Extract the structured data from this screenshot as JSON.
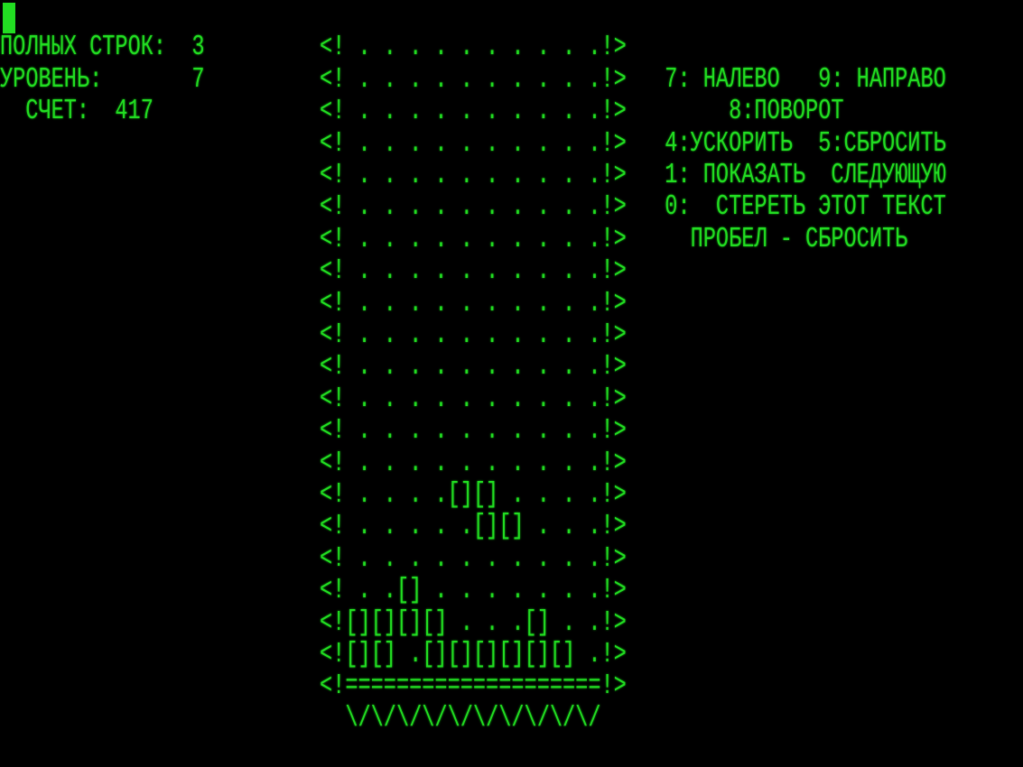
{
  "colors": {
    "text": "#22dd22",
    "background": "#000000"
  },
  "stats": {
    "lines_label": "ПОЛНЫХ СТРОК:",
    "lines_value": "3",
    "level_label": "УРОВЕНЬ:",
    "level_value": "7",
    "score_label": "СЧЕТ:",
    "score_value": "417"
  },
  "help": {
    "left": "7: НАЛЕВО",
    "right": "9: НАПРАВО",
    "rotate": "8:ПОВОРОТ",
    "speed": "4:УСКОРИТЬ",
    "drop": "5:СБРОСИТЬ",
    "show_next": "1: ПОКАЗАТЬ  СЛЕДУЮЩУЮ",
    "erase": "0:  СТЕРЕТЬ ЭТОТ ТЕКСТ",
    "space": "ПРОБЕЛ - СБРОСИТЬ"
  },
  "board": {
    "rows": [
      "<! . . . . . . . . . .!>",
      "<! . . . . . . . . . .!>",
      "<! . . . . . . . . . .!>",
      "<! . . . . . . . . . .!>",
      "<! . . . . . . . . . .!>",
      "<! . . . . . . . . . .!>",
      "<! . . . . . . . . . .!>",
      "<! . . . . . . . . . .!>",
      "<! . . . . . . . . . .!>",
      "<! . . . . . . . . . .!>",
      "<! . . . . . . . . . .!>",
      "<! . . . . . . . . . .!>",
      "<! . . . . . . . . . .!>",
      "<! . . . . . . . . . .!>",
      "<! . . . .[][] . . . .!>",
      "<! . . . . .[][] . . .!>",
      "<! . . . . . . . . . .!>",
      "<! . .[] . . . . . . .!>",
      "<![][][][] . . .[] . .!>",
      "<![][] .[][][][][][] .!>"
    ],
    "floor": "<!====================!>",
    "base": "\\/\\/\\/\\/\\/\\/\\/\\/\\/\\/"
  }
}
